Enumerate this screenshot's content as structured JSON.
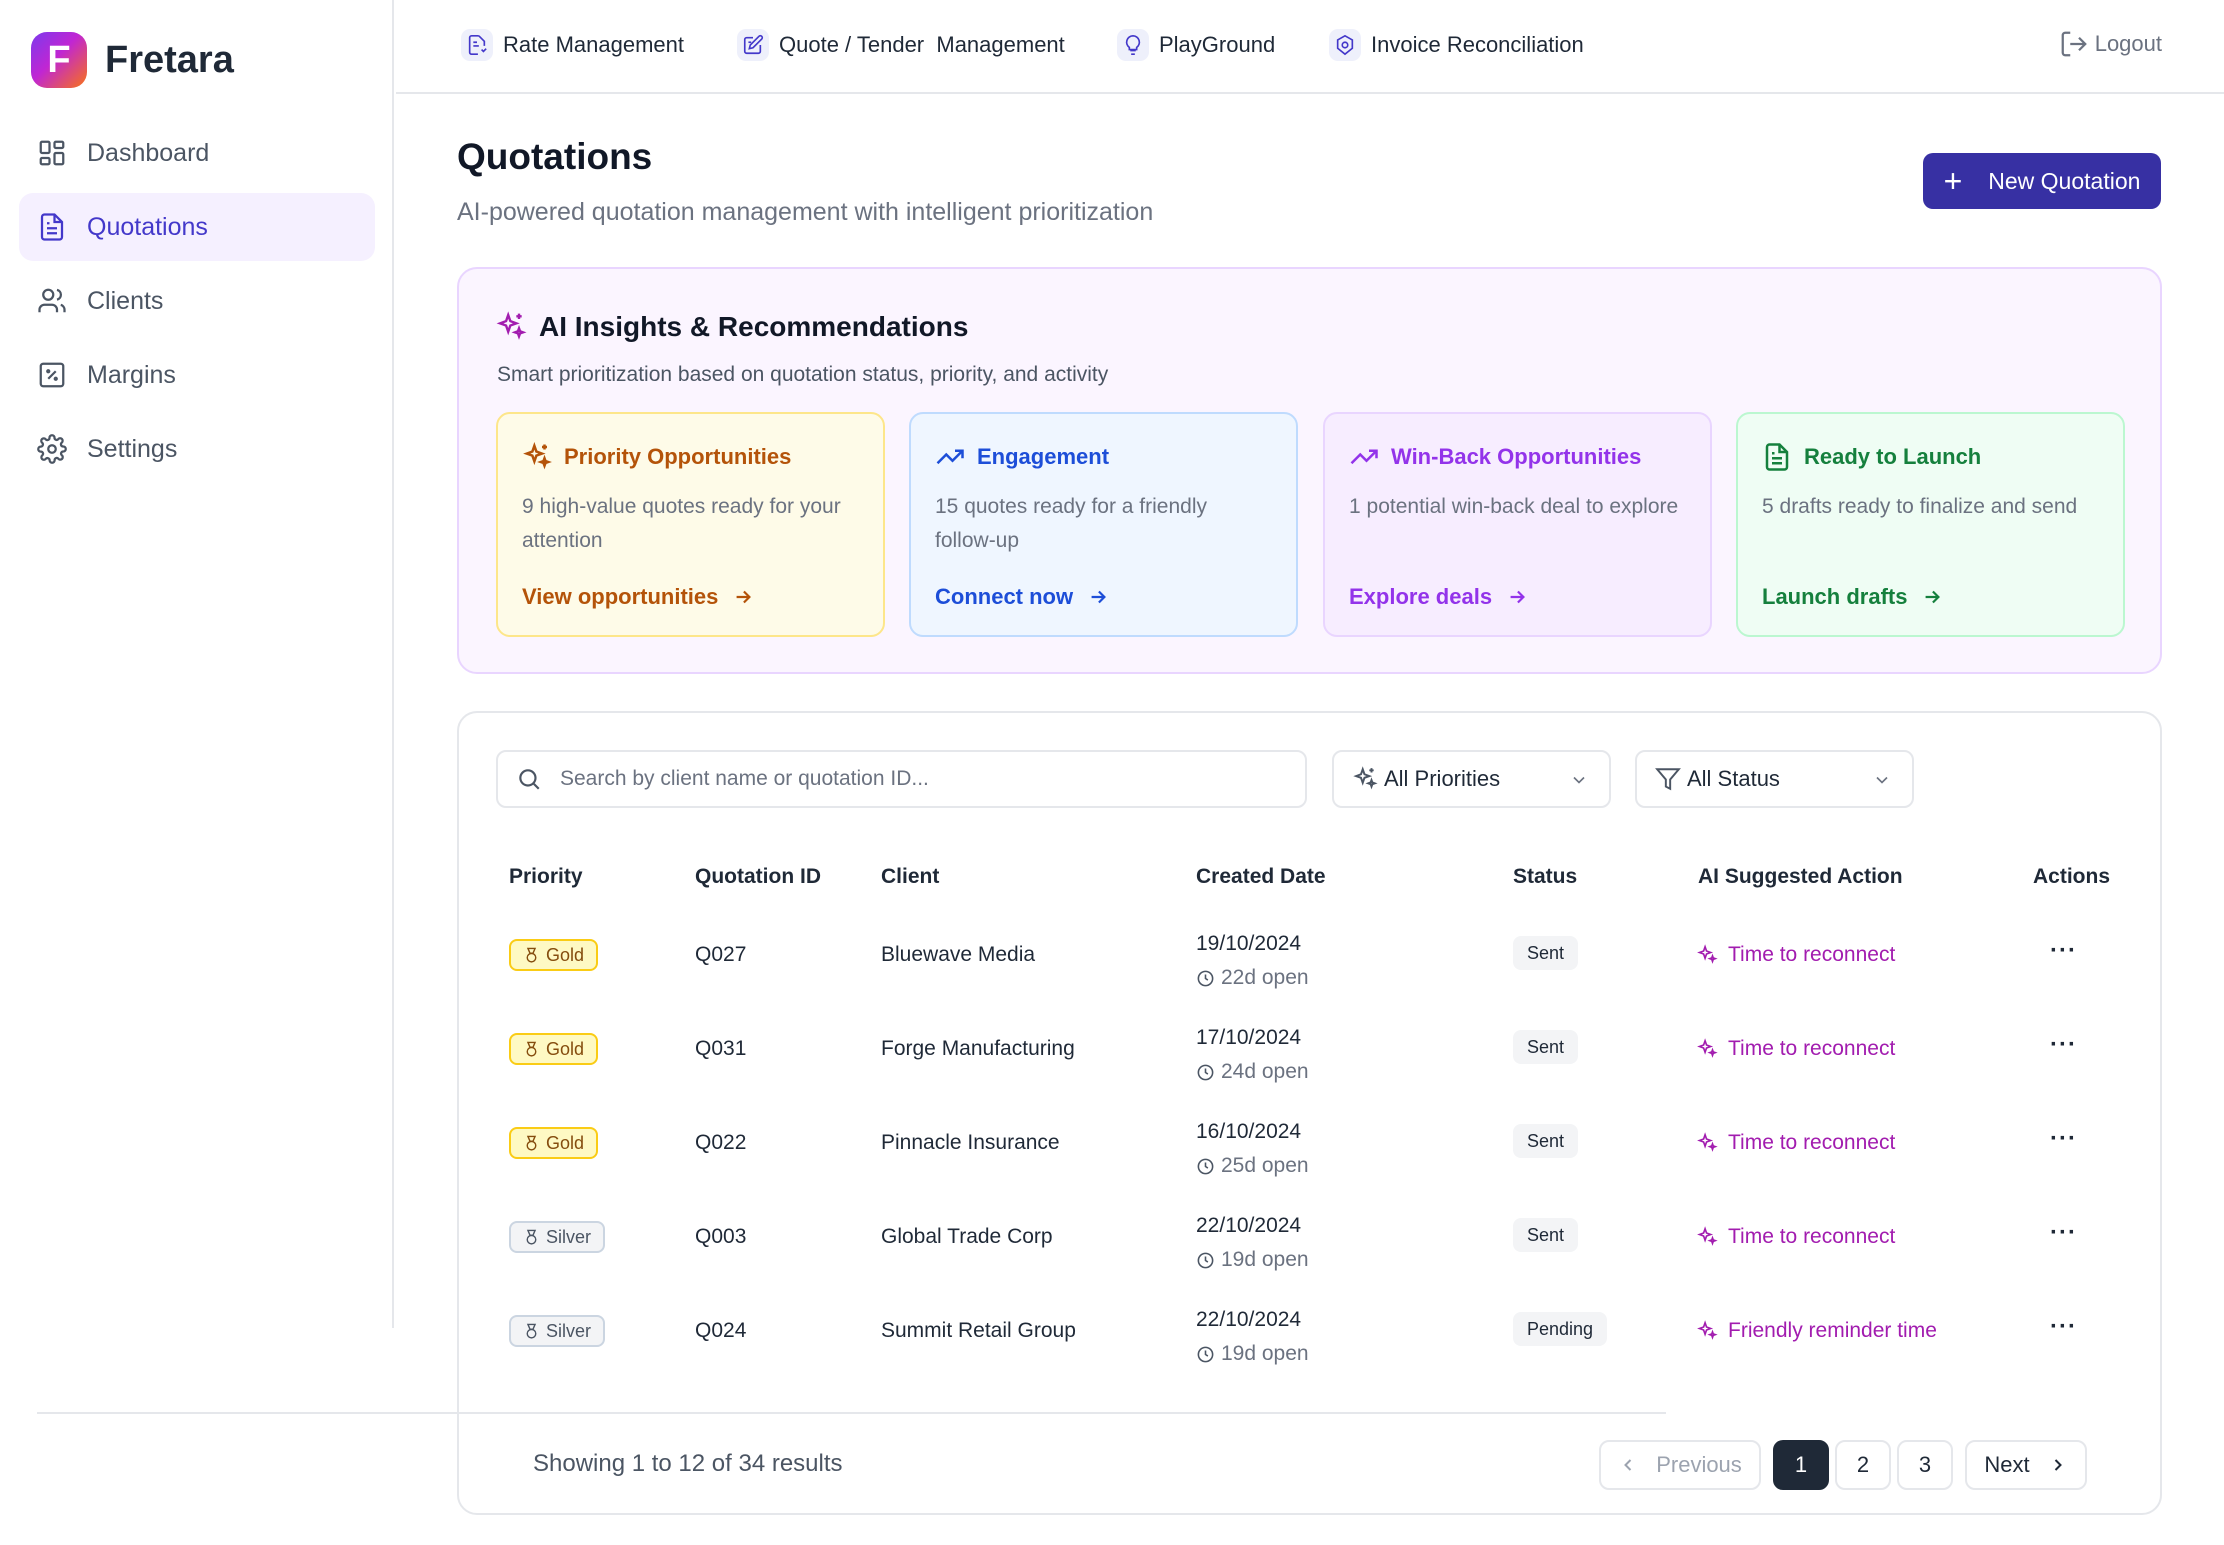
{
  "brand": {
    "name": "Fretara",
    "logo_letter": "F"
  },
  "sidebar": {
    "items": [
      {
        "label": "Dashboard",
        "icon": "dashboard-icon",
        "active": false
      },
      {
        "label": "Quotations",
        "icon": "document-icon",
        "active": true
      },
      {
        "label": "Clients",
        "icon": "users-icon",
        "active": false
      },
      {
        "label": "Margins",
        "icon": "percent-icon",
        "active": false
      },
      {
        "label": "Settings",
        "icon": "gear-icon",
        "active": false
      }
    ]
  },
  "topnav": {
    "items": [
      {
        "label": "Rate Management",
        "icon": "rate-doc-icon"
      },
      {
        "label": "Quote / Tender  Management",
        "icon": "quote-edit-icon"
      },
      {
        "label": "PlayGround",
        "icon": "lightbulb-icon"
      },
      {
        "label": "Invoice Reconciliation",
        "icon": "invoice-gear-icon"
      }
    ],
    "logout": "Logout"
  },
  "page": {
    "title": "Quotations",
    "subtitle": "AI-powered quotation management with intelligent prioritization",
    "new_button": "New Quotation"
  },
  "insights": {
    "title": "AI Insights & Recommendations",
    "subtitle": "Smart prioritization based on quotation status, priority, and activity",
    "cards": [
      {
        "title": "Priority Opportunities",
        "body": "9 high-value quotes ready for your attention",
        "link": "View opportunities",
        "icon": "sparkles-icon"
      },
      {
        "title": "Engagement",
        "body": "15 quotes ready for a friendly follow-up",
        "link": "Connect now",
        "icon": "trending-up-icon"
      },
      {
        "title": "Win-Back Opportunities",
        "body": "1 potential win-back deal to explore",
        "link": "Explore deals",
        "icon": "trending-up-icon"
      },
      {
        "title": "Ready to Launch",
        "body": "5 drafts ready to finalize and send",
        "link": "Launch drafts",
        "icon": "file-text-icon"
      }
    ]
  },
  "filters": {
    "search_placeholder": "Search by client name or quotation ID...",
    "priority_select": "All Priorities",
    "status_select": "All Status"
  },
  "table": {
    "headers": [
      "Priority",
      "Quotation ID",
      "Client",
      "Created Date",
      "Status",
      "AI Suggested Action",
      "Actions"
    ],
    "rows": [
      {
        "priority": "Gold",
        "tier": "gold",
        "id": "Q027",
        "client": "Bluewave Media",
        "date": "19/10/2024",
        "open": "22d open",
        "status": "Sent",
        "action": "Time to reconnect"
      },
      {
        "priority": "Gold",
        "tier": "gold",
        "id": "Q031",
        "client": "Forge Manufacturing",
        "date": "17/10/2024",
        "open": "24d open",
        "status": "Sent",
        "action": "Time to reconnect"
      },
      {
        "priority": "Gold",
        "tier": "gold",
        "id": "Q022",
        "client": "Pinnacle Insurance",
        "date": "16/10/2024",
        "open": "25d open",
        "status": "Sent",
        "action": "Time to reconnect"
      },
      {
        "priority": "Silver",
        "tier": "silver",
        "id": "Q003",
        "client": "Global Trade Corp",
        "date": "22/10/2024",
        "open": "19d open",
        "status": "Sent",
        "action": "Time to reconnect"
      },
      {
        "priority": "Silver",
        "tier": "silver",
        "id": "Q024",
        "client": "Summit Retail Group",
        "date": "22/10/2024",
        "open": "19d open",
        "status": "Pending",
        "action": "Friendly reminder time"
      }
    ],
    "row_actions": "···"
  },
  "pagination": {
    "summary": "Showing 1 to 12 of 34 results",
    "previous": "Previous",
    "pages": [
      "1",
      "2",
      "3"
    ],
    "current_page": "1",
    "next": "Next"
  },
  "colors": {
    "brand_primary": "#3730a3",
    "accent_purple": "#a21caf",
    "gold": "#facc15",
    "active_nav_bg": "#f5f0ff"
  }
}
